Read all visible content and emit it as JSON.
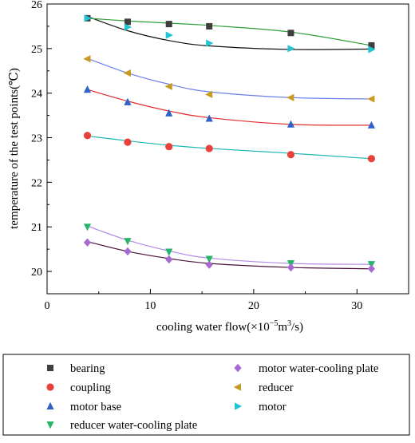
{
  "chart_data": {
    "type": "scatter",
    "xlabel_parts": [
      "cooling water flow(×10",
      "−5",
      "m",
      "3",
      "/s)"
    ],
    "ylabel": "temperature of the test points(℃)",
    "xlim": [
      0,
      35
    ],
    "ylim": [
      19.5,
      26
    ],
    "xticks": [
      0,
      10,
      20,
      30
    ],
    "yticks": [
      20,
      21,
      22,
      23,
      24,
      25,
      26
    ],
    "x": [
      3.9,
      7.8,
      11.8,
      15.7,
      23.6,
      31.4
    ],
    "grid": false,
    "legend_position": "bottom",
    "series": [
      {
        "name": "bearing",
        "marker": "square",
        "marker_color": "#3f3f3f",
        "line_color": "#111111",
        "values": [
          25.68,
          25.6,
          25.55,
          25.5,
          25.35,
          25.07
        ],
        "fit": [
          25.72,
          25.4,
          25.18,
          25.06,
          24.98,
          24.99
        ]
      },
      {
        "name": "coupling",
        "marker": "circle",
        "marker_color": "#e8403a",
        "line_color": "#1fb8b0",
        "values": [
          23.05,
          22.9,
          22.8,
          22.76,
          22.62,
          22.53
        ],
        "fit": [
          23.04,
          22.93,
          22.83,
          22.76,
          22.65,
          22.53
        ]
      },
      {
        "name": "motor base",
        "marker": "triangle-up",
        "marker_color": "#2f62c9",
        "line_color": "#e02b2b",
        "values": [
          24.08,
          23.8,
          23.55,
          23.43,
          23.3,
          23.28
        ],
        "fit": [
          24.08,
          23.82,
          23.6,
          23.45,
          23.3,
          23.28
        ]
      },
      {
        "name": "reducer water-cooling plate",
        "marker": "triangle-down",
        "marker_color": "#27b56a",
        "line_color": "#b18ae6",
        "values": [
          21.0,
          20.68,
          20.44,
          20.28,
          20.18,
          20.16
        ],
        "fit": [
          21.02,
          20.7,
          20.46,
          20.3,
          20.18,
          20.16
        ]
      },
      {
        "name": "motor water-cooling plate",
        "marker": "diamond",
        "marker_color": "#a86ad2",
        "line_color": "#4a123a",
        "values": [
          20.65,
          20.45,
          20.27,
          20.15,
          20.09,
          20.06
        ],
        "fit": [
          20.67,
          20.45,
          20.29,
          20.18,
          20.09,
          20.06
        ]
      },
      {
        "name": "reducer",
        "marker": "triangle-left",
        "marker_color": "#c89a22",
        "line_color": "#6b7fe8",
        "values": [
          24.77,
          24.45,
          24.15,
          23.97,
          23.9,
          23.87
        ],
        "fit": [
          24.78,
          24.45,
          24.2,
          24.03,
          23.9,
          23.87
        ]
      },
      {
        "name": "motor",
        "marker": "triangle-right",
        "marker_color": "#22c3d3",
        "line_color": "#2e9e3a",
        "values": [
          25.68,
          25.48,
          25.3,
          25.12,
          25.0,
          24.98
        ],
        "fit": [
          25.68,
          25.62,
          25.57,
          25.52,
          25.37,
          25.07
        ]
      }
    ],
    "legend_columns": [
      [
        "bearing",
        "coupling",
        "motor base",
        "reducer water-cooling plate"
      ],
      [
        "motor water-cooling plate",
        "reducer",
        "motor"
      ]
    ]
  }
}
